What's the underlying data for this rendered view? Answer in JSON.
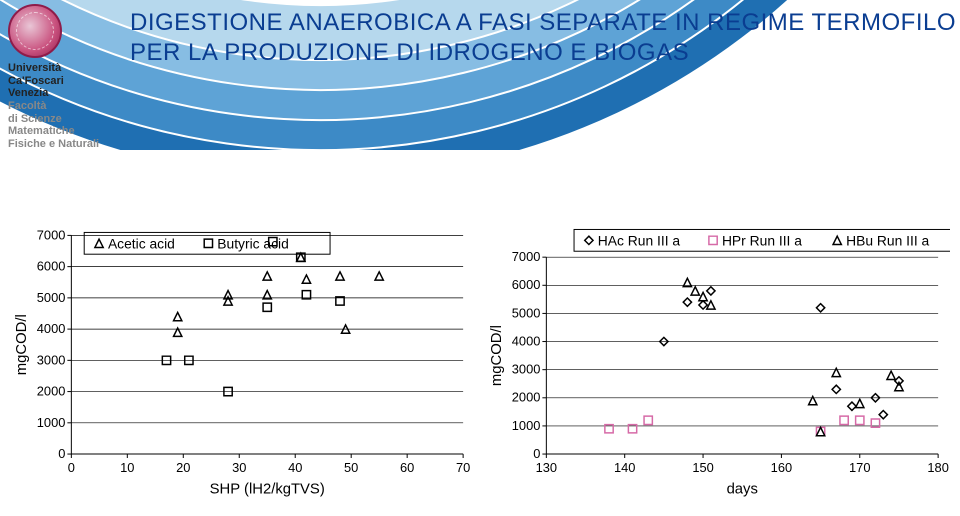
{
  "header": {
    "title_line1": "DIGESTIONE ANAEROBICA  A FASI SEPARATE IN REGIME TERMOFILO",
    "title_line2": "PER LA PRODUZIONE DI IDROGENO E BIOGAS",
    "title_color": "#0a3d91",
    "university": {
      "l1": "Università",
      "l2": "Ca'Foscari",
      "l3": "Venezia",
      "l4": "Facoltà",
      "l5": "di Scienze",
      "l6": "Matematiche",
      "l7": "Fisiche e Naturali"
    }
  },
  "decoration": {
    "arc_colors": [
      "#1f6fb2",
      "#3d8ac6",
      "#5ea3d6",
      "#87bde3",
      "#b6d8ed"
    ],
    "arc_stroke": "#ffffff"
  },
  "chart_left": {
    "type": "scatter",
    "xlim": [
      0,
      70
    ],
    "ylim": [
      0,
      7000
    ],
    "xtick_step": 10,
    "ytick_step": 1000,
    "xlabel": "SHP (lH2/kgTVS)",
    "ylabel": "mgCOD/l",
    "background": "#ffffff",
    "grid_color": "#000000",
    "legend": [
      {
        "label": "Acetic acid",
        "marker": "triangle",
        "color": "#000000"
      },
      {
        "label": "Butyric acid",
        "marker": "square",
        "color": "#000000"
      }
    ],
    "series": [
      {
        "name": "Acetic acid",
        "marker": "triangle",
        "color": "#000000",
        "points": [
          [
            19,
            4400
          ],
          [
            19,
            3900
          ],
          [
            28,
            5100
          ],
          [
            28,
            4900
          ],
          [
            35,
            5100
          ],
          [
            35,
            5700
          ],
          [
            41,
            6300
          ],
          [
            42,
            5600
          ],
          [
            48,
            5700
          ],
          [
            49,
            4000
          ],
          [
            55,
            5700
          ]
        ]
      },
      {
        "name": "Butyric acid",
        "marker": "square",
        "color": "#000000",
        "points": [
          [
            17,
            3000
          ],
          [
            21,
            3000
          ],
          [
            28,
            2000
          ],
          [
            35,
            4700
          ],
          [
            36,
            6800
          ],
          [
            41,
            6300
          ],
          [
            42,
            5100
          ],
          [
            48,
            4900
          ]
        ]
      }
    ]
  },
  "chart_right": {
    "type": "scatter",
    "xlim": [
      130,
      180
    ],
    "ylim": [
      0,
      7000
    ],
    "xtick_step": 10,
    "ytick_step": 1000,
    "xlabel": "days",
    "ylabel": "mgCOD/l",
    "background": "#ffffff",
    "grid_color": "#000000",
    "legend": [
      {
        "label": "HAc Run III a",
        "marker": "diamond",
        "color": "#000000"
      },
      {
        "label": "HPr Run III a",
        "marker": "square",
        "color": "#d66aa7"
      },
      {
        "label": "HBu Run III a",
        "marker": "triangle",
        "color": "#000000"
      }
    ],
    "series": [
      {
        "name": "HAc Run III a",
        "marker": "diamond",
        "color": "#000000",
        "points": [
          [
            145,
            4000
          ],
          [
            148,
            5400
          ],
          [
            150,
            5300
          ],
          [
            151,
            5800
          ],
          [
            165,
            5200
          ],
          [
            167,
            2300
          ],
          [
            169,
            1700
          ],
          [
            172,
            2000
          ],
          [
            173,
            1400
          ],
          [
            175,
            2600
          ]
        ]
      },
      {
        "name": "HPr Run III a",
        "marker": "square",
        "color": "#d66aa7",
        "points": [
          [
            138,
            900
          ],
          [
            141,
            900
          ],
          [
            143,
            1200
          ],
          [
            165,
            800
          ],
          [
            168,
            1200
          ],
          [
            170,
            1200
          ],
          [
            172,
            1100
          ]
        ]
      },
      {
        "name": "HBu Run III a",
        "marker": "triangle",
        "color": "#000000",
        "points": [
          [
            148,
            6100
          ],
          [
            149,
            5800
          ],
          [
            150,
            5600
          ],
          [
            151,
            5300
          ],
          [
            164,
            1900
          ],
          [
            165,
            800
          ],
          [
            167,
            2900
          ],
          [
            170,
            1800
          ],
          [
            174,
            2800
          ],
          [
            175,
            2400
          ]
        ]
      }
    ]
  }
}
